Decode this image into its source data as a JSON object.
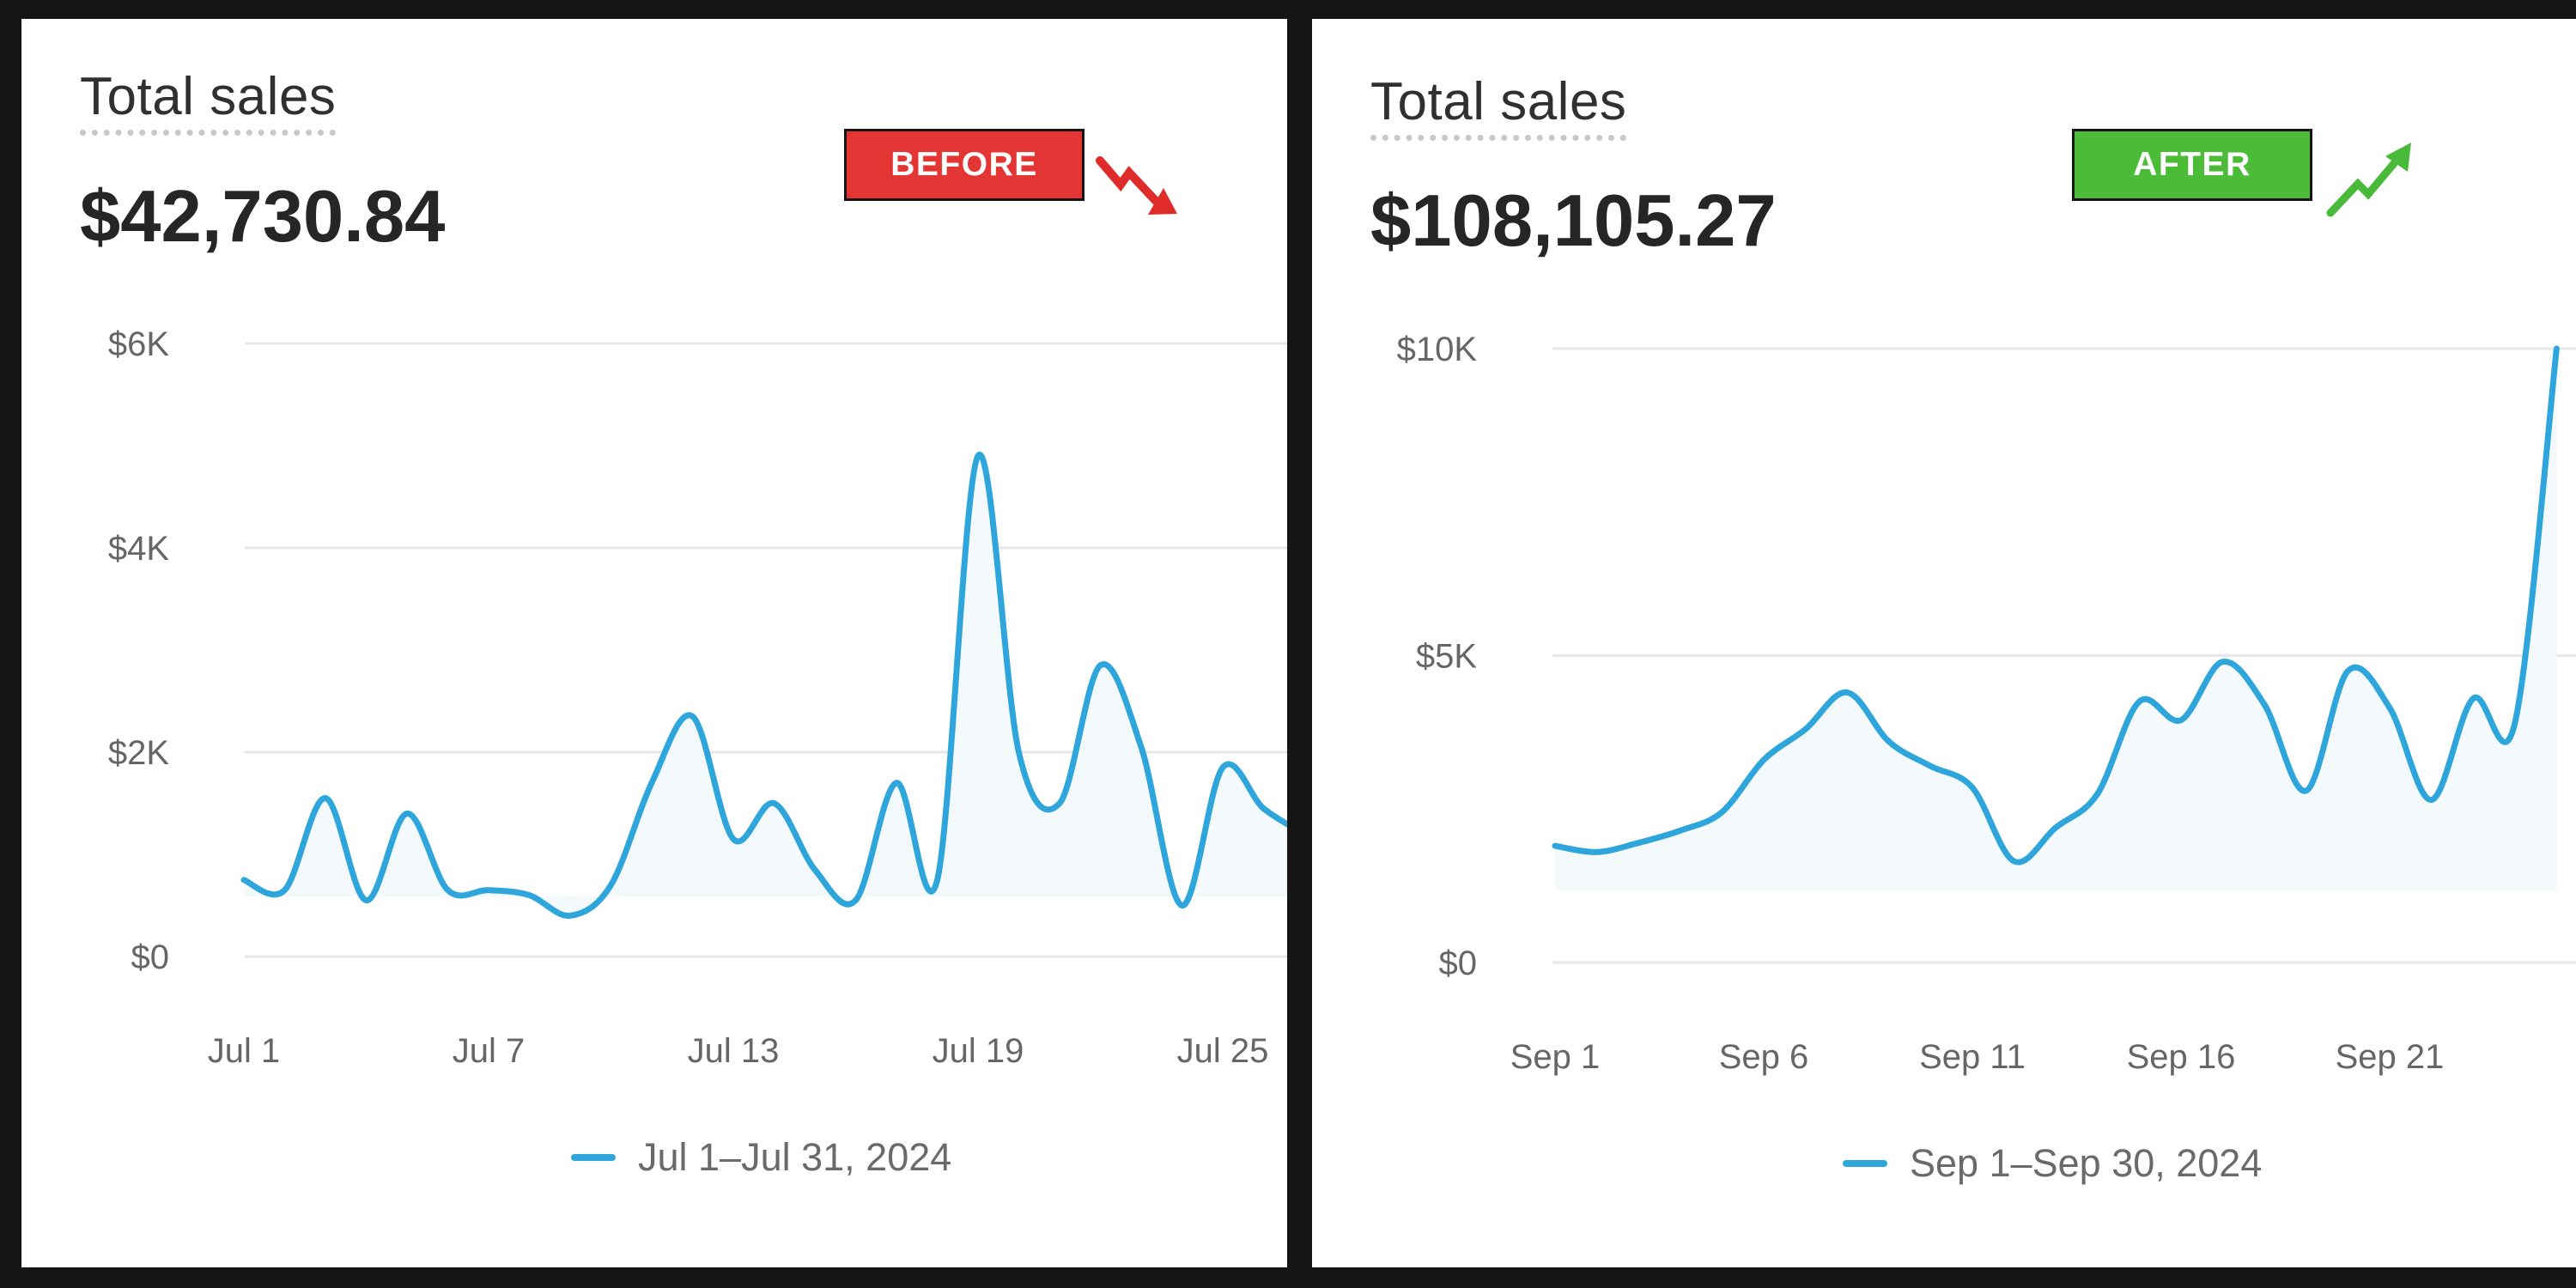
{
  "colors": {
    "line": "#2ea6dc",
    "area": "#f4f9fc",
    "grid": "#e7e7e7",
    "before_badge": "#e43535",
    "after_badge": "#4bbb38",
    "before_arrow": "#e02b2b",
    "after_arrow": "#49b939"
  },
  "before": {
    "title": "Total sales",
    "total": "$42,730.84",
    "badge": "BEFORE",
    "trend_icon": "trend-down-icon",
    "legend": "Jul 1–Jul 31, 2024"
  },
  "after": {
    "title": "Total sales",
    "total": "$108,105.27",
    "badge": "AFTER",
    "trend_icon": "trend-up-icon",
    "legend": "Sep 1–Sep 30, 2024"
  },
  "chart_data": [
    {
      "type": "line",
      "series": [
        {
          "values": [
            750,
            650,
            1550,
            550,
            1400,
            650,
            650,
            600,
            400,
            700,
            1700,
            2350,
            1150,
            1500,
            850,
            550,
            1700,
            750,
            4900,
            2000,
            1500,
            2850,
            2050,
            500,
            1850,
            1450,
            1200
          ]
        }
      ],
      "x_labels": [
        "Jul 1",
        "Jul 7",
        "Jul 13",
        "Jul 19",
        "Jul 25"
      ],
      "yticks": [
        "$0",
        "$2K",
        "$4K",
        "$6K"
      ],
      "ylim": [
        0,
        6000
      ],
      "grid": true
    },
    {
      "type": "line",
      "series": [
        {
          "values": [
            1900,
            1800,
            1950,
            2150,
            2450,
            3300,
            3800,
            4400,
            3600,
            3200,
            2850,
            1650,
            2200,
            2750,
            4250,
            3950,
            4900,
            4200,
            2800,
            4750,
            4150,
            2650,
            4300,
            3900,
            10000
          ]
        }
      ],
      "x_labels": [
        "Sep 1",
        "Sep 6",
        "Sep 11",
        "Sep 16",
        "Sep 21",
        "S"
      ],
      "yticks": [
        "$0",
        "$5K",
        "$10K"
      ],
      "ylim": [
        0,
        10000
      ],
      "grid": true
    }
  ]
}
